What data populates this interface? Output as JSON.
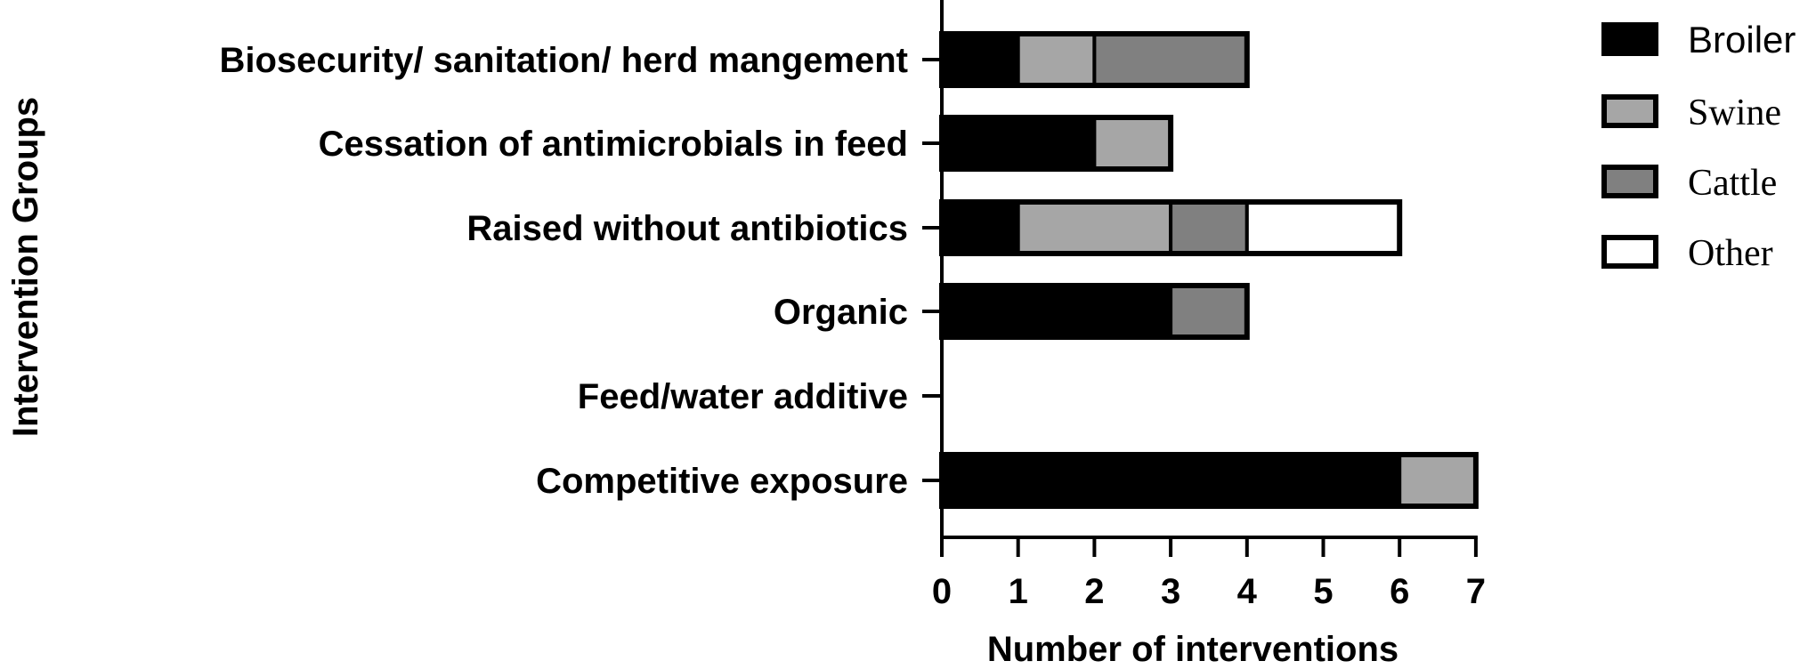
{
  "chart_data": {
    "type": "bar",
    "orientation": "horizontal",
    "stacked": true,
    "categories": [
      "Biosecurity/ sanitation/ herd mangement",
      "Cessation of antimicrobials in feed",
      "Raised without antibiotics",
      "Organic",
      "Feed/water additive",
      "Competitive exposure"
    ],
    "series": [
      {
        "name": "Broiler",
        "color": "#000000",
        "values": [
          1,
          2,
          1,
          3,
          0,
          6
        ]
      },
      {
        "name": "Swine",
        "color": "#a6a6a6",
        "values": [
          1,
          1,
          2,
          0,
          0,
          1
        ]
      },
      {
        "name": "Cattle",
        "color": "#808080",
        "values": [
          2,
          0,
          1,
          1,
          0,
          0
        ]
      },
      {
        "name": "Other",
        "color": "#ffffff",
        "values": [
          0,
          0,
          2,
          0,
          0,
          0
        ]
      }
    ],
    "xlabel": "Number of interventions",
    "ylabel": "Intervention Groups",
    "xlim": [
      0,
      7
    ],
    "xticks": [
      "0",
      "1",
      "2",
      "3",
      "4",
      "5",
      "6",
      "7"
    ],
    "grid": false,
    "legend": "right"
  }
}
